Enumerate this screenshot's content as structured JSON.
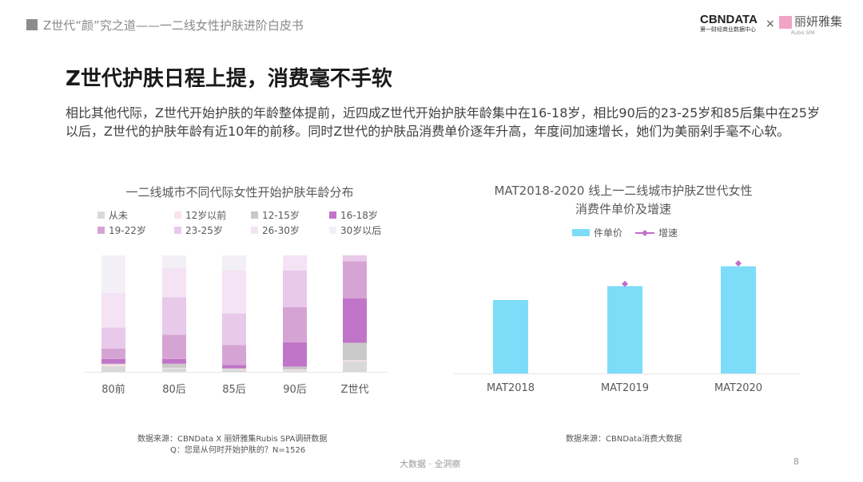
{
  "header": {
    "title": "Z世代“颜”究之道——一二线女性护肤进阶白皮书"
  },
  "logos": {
    "cbndata": "CBNDATA",
    "cbndata_sub": "第一财经商业数据中心",
    "separator": "×",
    "partner": "丽妍雅集",
    "partner_sub": "Rubis SPA"
  },
  "slide": {
    "title": "Z世代护肤日程上提，消费毫不手软",
    "body": "相比其他代际，Z世代开始护肤的年龄整体提前，近四成Z世代开始护肤年龄集中在16-18岁，相比90后的23-25岁和85后集中在25岁以后，Z世代的护肤年龄有近10年的前移。同时Z世代的护肤品消费单价逐年升高，年度间加速增长，她们为美丽剁手毫不心软。"
  },
  "chart_data": [
    {
      "type": "bar",
      "stacked": true,
      "title": "一二线城市不同代际女性开始护肤年龄分布",
      "legend_position": "top",
      "categories": [
        "80前",
        "80后",
        "85后",
        "90后",
        "Z世代"
      ],
      "series": [
        {
          "name": "从未",
          "color": "#d9d9d9",
          "values": [
            5,
            3,
            2,
            1,
            9
          ]
        },
        {
          "name": "12岁以前",
          "color": "#fbe3ec",
          "values": [
            1.5,
            0.5,
            0.5,
            1,
            1
          ]
        },
        {
          "name": "12-15岁",
          "color": "#c9c9c9",
          "values": [
            0.5,
            3.5,
            0.5,
            2.5,
            15
          ]
        },
        {
          "name": "16-18岁",
          "color": "#c075c8",
          "values": [
            4,
            4,
            3,
            21,
            38
          ]
        },
        {
          "name": "19-22岁",
          "color": "#d6a4d4",
          "values": [
            9,
            21,
            17,
            30,
            32
          ]
        },
        {
          "name": "23-25岁",
          "color": "#e8c9ea",
          "values": [
            18,
            32,
            27,
            31.5,
            5
          ]
        },
        {
          "name": "26-30岁",
          "color": "#f4e3f4",
          "values": [
            30,
            25,
            37,
            13,
            0
          ]
        },
        {
          "name": "30岁以后",
          "color": "#f3eff6",
          "values": [
            32,
            11,
            13,
            0,
            0
          ]
        }
      ],
      "ylim": [
        0,
        100
      ],
      "grid": false
    },
    {
      "type": "bar",
      "title_line1": "MAT2018-2020 线上一二线城市护肤Z世代女性",
      "title_line2": "消费件单价及增速",
      "legend_position": "top",
      "categories": [
        "MAT2018",
        "MAT2019",
        "MAT2020"
      ],
      "series": [
        {
          "name": "件单价",
          "type": "bar",
          "color": "#7ddcf8",
          "values": [
            100,
            119,
            146
          ]
        },
        {
          "name": "增速",
          "type": "scatter",
          "color": "#c16ec8",
          "values": [
            null,
            122,
            150
          ]
        }
      ],
      "grid": false
    }
  ],
  "sources": {
    "left_1": "数据来源：CBNData X 丽妍雅集Rubis  SPA调研数据",
    "left_2": "Q：您是从何时开始护肤的？N=1526",
    "right": "数据来源：CBNData消费大数据"
  },
  "footer": {
    "slogan": "大数据 · 全洞察",
    "page": "8"
  }
}
